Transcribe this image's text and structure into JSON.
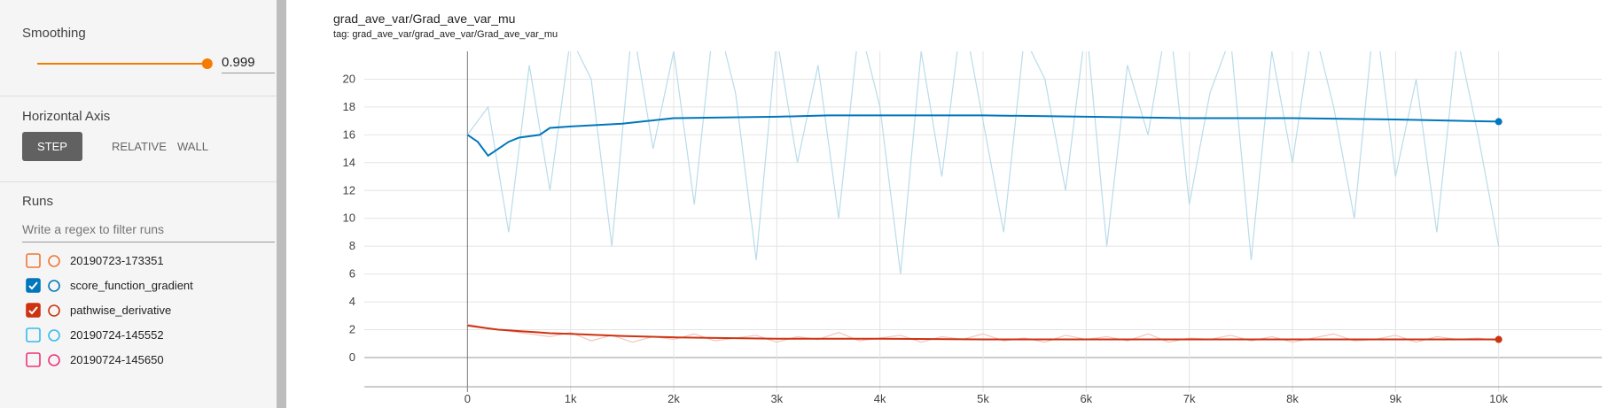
{
  "sidebar": {
    "smoothing": {
      "label": "Smoothing",
      "value": 0.999
    },
    "horizontal_axis": {
      "label": "Horizontal Axis",
      "options": [
        "STEP",
        "RELATIVE",
        "WALL"
      ],
      "selected": 0
    },
    "runs": {
      "label": "Runs",
      "filter_placeholder": "Write a regex to filter runs",
      "items": [
        {
          "name": "20190723-173351",
          "color": "#ee7733",
          "checked": false
        },
        {
          "name": "score_function_gradient",
          "color": "#0077bb",
          "checked": true
        },
        {
          "name": "pathwise_derivative",
          "color": "#cc3311",
          "checked": true
        },
        {
          "name": "20190724-145552",
          "color": "#33bbee",
          "checked": false
        },
        {
          "name": "20190724-145650",
          "color": "#ee3377",
          "checked": false
        }
      ]
    }
  },
  "chart_data": {
    "type": "line",
    "title": "grad_ave_var/Grad_ave_var_mu",
    "subtitle": "tag: grad_ave_var/grad_ave_var/Grad_ave_var_mu",
    "x": [
      0,
      100,
      200,
      300,
      400,
      500,
      700,
      800,
      1000,
      1500,
      2000,
      3000,
      3500,
      4000,
      5000,
      6000,
      7000,
      8000,
      9000,
      10000
    ],
    "raw_x": [
      0,
      200,
      400,
      600,
      800,
      1000,
      1200,
      1400,
      1600,
      1800,
      2000,
      2200,
      2400,
      2600,
      2800,
      3000,
      3200,
      3400,
      3600,
      3800,
      4000,
      4200,
      4400,
      4600,
      4800,
      5000,
      5200,
      5400,
      5600,
      5800,
      6000,
      6200,
      6400,
      6600,
      6800,
      7000,
      7200,
      7400,
      7600,
      7800,
      8000,
      8200,
      8400,
      8600,
      8800,
      9000,
      9200,
      9400,
      9600,
      9800,
      10000
    ],
    "series": [
      {
        "color": "#0077bb",
        "raw_color": "#b9dcea",
        "values": [
          16,
          15.5,
          14.5,
          15,
          15.5,
          15.8,
          16,
          16.5,
          16.6,
          16.8,
          17.2,
          17.3,
          17.4,
          17.4,
          17.4,
          17.3,
          17.2,
          17.2,
          17.1,
          16.95
        ],
        "raw_values": [
          16,
          18,
          9,
          21,
          12,
          23,
          20,
          8,
          24,
          15,
          22,
          11,
          25,
          19,
          7,
          23,
          14,
          21,
          10,
          24,
          18,
          6,
          22,
          13,
          25,
          17,
          9,
          23,
          20,
          12,
          24,
          8,
          21,
          16,
          25,
          11,
          19,
          23,
          7,
          22,
          14,
          24,
          18,
          10,
          25,
          13,
          20,
          9,
          23,
          16,
          8
        ]
      },
      {
        "color": "#cc3311",
        "raw_color": "#f4c4bc",
        "values": [
          2.3,
          2.2,
          2.1,
          2,
          1.95,
          1.9,
          1.8,
          1.75,
          1.7,
          1.55,
          1.45,
          1.35,
          1.35,
          1.35,
          1.3,
          1.3,
          1.3,
          1.3,
          1.3,
          1.3
        ],
        "raw_values": [
          2.4,
          2.1,
          1.9,
          1.7,
          1.5,
          1.8,
          1.2,
          1.6,
          1.1,
          1.5,
          1.3,
          1.7,
          1.2,
          1.4,
          1.6,
          1.1,
          1.5,
          1.3,
          1.8,
          1.2,
          1.4,
          1.6,
          1.1,
          1.5,
          1.3,
          1.7,
          1.2,
          1.4,
          1.1,
          1.6,
          1.3,
          1.5,
          1.2,
          1.7,
          1.1,
          1.4,
          1.3,
          1.6,
          1.2,
          1.5,
          1.1,
          1.4,
          1.7,
          1.2,
          1.3,
          1.6,
          1.1,
          1.5,
          1.3,
          1.4,
          1.2
        ]
      }
    ],
    "xlim": [
      -1000,
      11000
    ],
    "ylim": [
      -2.1,
      22
    ],
    "xticks": [
      0,
      {
        "value": 1000,
        "label": "1k"
      },
      {
        "value": 2000,
        "label": "2k"
      },
      {
        "value": 3000,
        "label": "3k"
      },
      {
        "value": 4000,
        "label": "4k"
      },
      {
        "value": 5000,
        "label": "5k"
      },
      {
        "value": 6000,
        "label": "6k"
      },
      {
        "value": 7000,
        "label": "7k"
      },
      {
        "value": 8000,
        "label": "8k"
      },
      {
        "value": 9000,
        "label": "9k"
      },
      {
        "value": 10000,
        "label": "10k"
      }
    ],
    "yticks": [
      0,
      2,
      4,
      6,
      8,
      10,
      12,
      14,
      16,
      18,
      20
    ],
    "grid": true
  }
}
